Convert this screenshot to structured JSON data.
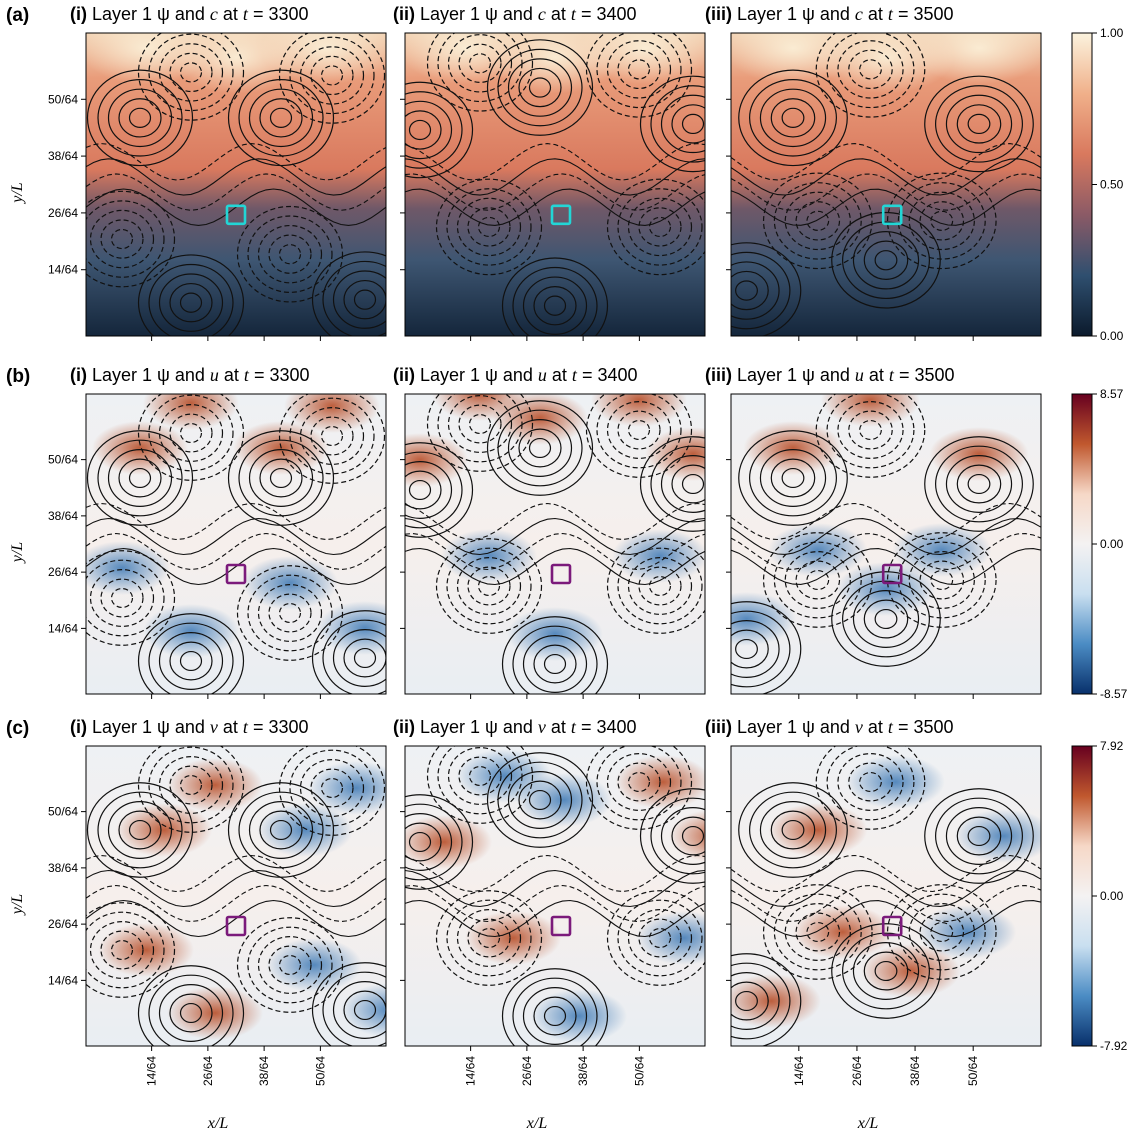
{
  "figure": {
    "rows": [
      {
        "row_label": "(a)",
        "panels": [
          {
            "tag": "(i)",
            "title_prefix": "Layer 1 ψ and ",
            "variable": "c",
            "title_mid": " at ",
            "time_var": "t",
            "time_value": "= 3300"
          },
          {
            "tag": "(ii)",
            "title_prefix": "Layer 1 ψ and ",
            "variable": "c",
            "title_mid": " at ",
            "time_var": "t",
            "time_value": "= 3400"
          },
          {
            "tag": "(iii)",
            "title_prefix": "Layer 1 ψ and ",
            "variable": "c",
            "title_mid": " at ",
            "time_var": "t",
            "time_value": "= 3500"
          }
        ],
        "colorbar": {
          "ticks": [
            "1.00",
            "0.50",
            "0.00"
          ],
          "stops": [
            "#fbf3de",
            "#f0b08a",
            "#d9795e",
            "#8b5a66",
            "#2f4f6f",
            "#0b1a2c"
          ]
        },
        "box_color": "#22d6d6"
      },
      {
        "row_label": "(b)",
        "panels": [
          {
            "tag": "(i)",
            "title_prefix": "Layer 1 ψ and ",
            "variable": "u",
            "title_mid": " at ",
            "time_var": "t",
            "time_value": "= 3300"
          },
          {
            "tag": "(ii)",
            "title_prefix": "Layer 1 ψ and ",
            "variable": "u",
            "title_mid": " at ",
            "time_var": "t",
            "time_value": "= 3400"
          },
          {
            "tag": "(iii)",
            "title_prefix": "Layer 1 ψ and ",
            "variable": "u",
            "title_mid": " at ",
            "time_var": "t",
            "time_value": "= 3500"
          }
        ],
        "colorbar": {
          "ticks": [
            "8.57",
            "0.00",
            "-8.57"
          ],
          "stops": [
            "#67001f",
            "#c0582e",
            "#f6d8c7",
            "#f4f2f2",
            "#c9dff0",
            "#4b8cc4",
            "#08306b"
          ]
        },
        "box_color": "#7b1a7b"
      },
      {
        "row_label": "(c)",
        "panels": [
          {
            "tag": "(i)",
            "title_prefix": "Layer 1 ψ and ",
            "variable": "v",
            "title_mid": " at ",
            "time_var": "t",
            "time_value": "= 3300"
          },
          {
            "tag": "(ii)",
            "title_prefix": "Layer 1 ψ and ",
            "variable": "v",
            "title_mid": " at ",
            "time_var": "t",
            "time_value": "= 3400"
          },
          {
            "tag": "(iii)",
            "title_prefix": "Layer 1 ψ and ",
            "variable": "v",
            "title_mid": " at ",
            "time_var": "t",
            "time_value": "= 3500"
          }
        ],
        "colorbar": {
          "ticks": [
            "7.92",
            "0.00",
            "-7.92"
          ],
          "stops": [
            "#67001f",
            "#c0582e",
            "#f6d8c7",
            "#f4f2f2",
            "#c9dff0",
            "#4b8cc4",
            "#08306b"
          ]
        },
        "box_color": "#7b1a7b"
      }
    ],
    "y_axis_label": "y/L",
    "x_axis_label": "x/L",
    "y_ticks": [
      "50/64",
      "38/64",
      "26/64",
      "14/64"
    ],
    "x_ticks": [
      "14/64",
      "26/64",
      "38/64",
      "50/64"
    ]
  },
  "chart_data": {
    "type": "heatmap",
    "x_ticks": [
      0.21875,
      0.40625,
      0.59375,
      0.78125
    ],
    "y_ticks": [
      0.78125,
      0.59375,
      0.40625,
      0.21875
    ],
    "colorbar_ranges": {
      "c": [
        0.0,
        1.0
      ],
      "u": [
        -8.57,
        8.57
      ],
      "v": [
        -7.92,
        7.92
      ]
    },
    "times": [
      3300,
      3400,
      3500
    ],
    "vortices": {
      "3300": [
        {
          "x": 0.18,
          "y": 0.72,
          "sign": 1
        },
        {
          "x": 0.65,
          "y": 0.72,
          "sign": 1
        },
        {
          "x": 0.35,
          "y": 0.87,
          "sign": -1
        },
        {
          "x": 0.82,
          "y": 0.86,
          "sign": -1
        },
        {
          "x": 0.35,
          "y": 0.11,
          "sign": 1
        },
        {
          "x": 0.93,
          "y": 0.12,
          "sign": 1
        },
        {
          "x": 0.12,
          "y": 0.32,
          "sign": -1
        },
        {
          "x": 0.68,
          "y": 0.27,
          "sign": -1
        }
      ],
      "3400": [
        {
          "x": 0.05,
          "y": 0.68,
          "sign": 1
        },
        {
          "x": 0.45,
          "y": 0.82,
          "sign": 1
        },
        {
          "x": 0.96,
          "y": 0.7,
          "sign": 1
        },
        {
          "x": 0.25,
          "y": 0.9,
          "sign": -1
        },
        {
          "x": 0.78,
          "y": 0.88,
          "sign": -1
        },
        {
          "x": 0.5,
          "y": 0.1,
          "sign": 1
        },
        {
          "x": 0.28,
          "y": 0.36,
          "sign": -1
        },
        {
          "x": 0.85,
          "y": 0.36,
          "sign": -1
        }
      ],
      "3500": [
        {
          "x": 0.2,
          "y": 0.72,
          "sign": 1
        },
        {
          "x": 0.8,
          "y": 0.7,
          "sign": 1
        },
        {
          "x": 0.5,
          "y": 0.25,
          "sign": 1
        },
        {
          "x": 0.45,
          "y": 0.88,
          "sign": -1
        },
        {
          "x": 0.28,
          "y": 0.38,
          "sign": -1
        },
        {
          "x": 0.68,
          "y": 0.38,
          "sign": -1
        },
        {
          "x": 0.05,
          "y": 0.15,
          "sign": 1
        }
      ]
    },
    "box_position": {
      "3300": [
        0.5,
        0.4
      ],
      "3400": [
        0.52,
        0.4
      ],
      "3500": [
        0.52,
        0.4
      ]
    }
  }
}
